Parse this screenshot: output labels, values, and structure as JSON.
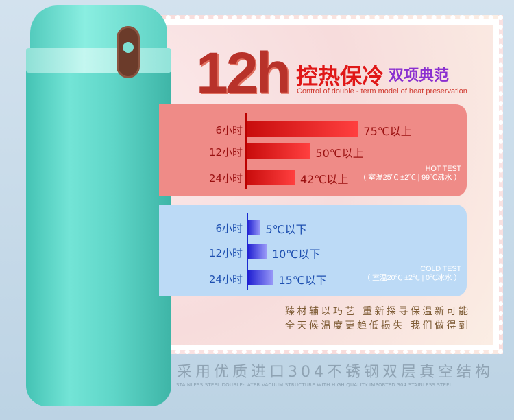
{
  "title": {
    "big": "12h",
    "cn": "控热保冷",
    "cn2": "双项典范",
    "subtitle": "Control of double - term model of heat preservation"
  },
  "hot": {
    "label": "HOT TEST",
    "condition": "（ 室温25℃ ±2℃ | 99℃沸水 ）",
    "color": "#ef8b87",
    "rows": [
      {
        "time": "6小时",
        "value": "75℃以上",
        "temp": 75
      },
      {
        "time": "12小时",
        "value": "50℃以上",
        "temp": 50
      },
      {
        "time": "24小时",
        "value": "42℃以上",
        "temp": 42
      }
    ]
  },
  "cold": {
    "label": "COLD TEST",
    "condition": "（ 室温20℃ ±2℃ | 0℃冰水 ）",
    "color": "#bcdaf6",
    "rows": [
      {
        "time": "6小时",
        "value": "5℃以下",
        "temp": 5
      },
      {
        "time": "12小时",
        "value": "10℃以下",
        "temp": 10
      },
      {
        "time": "24小时",
        "value": "15℃以下",
        "temp": 15
      }
    ]
  },
  "slogan": [
    "臻材辅以巧艺 重新探寻保温新可能",
    "全天候温度更趋低损失 我们做得到"
  ],
  "bottom": {
    "cn": "采用优质进口304不锈钢双层真空结构",
    "en": "STAINLESS STEEL DOUBLE-LAYER VACUUM STRUCTURE WITH HIGH QUALITY IMPORTED 304 STAINLESS STEEL"
  }
}
